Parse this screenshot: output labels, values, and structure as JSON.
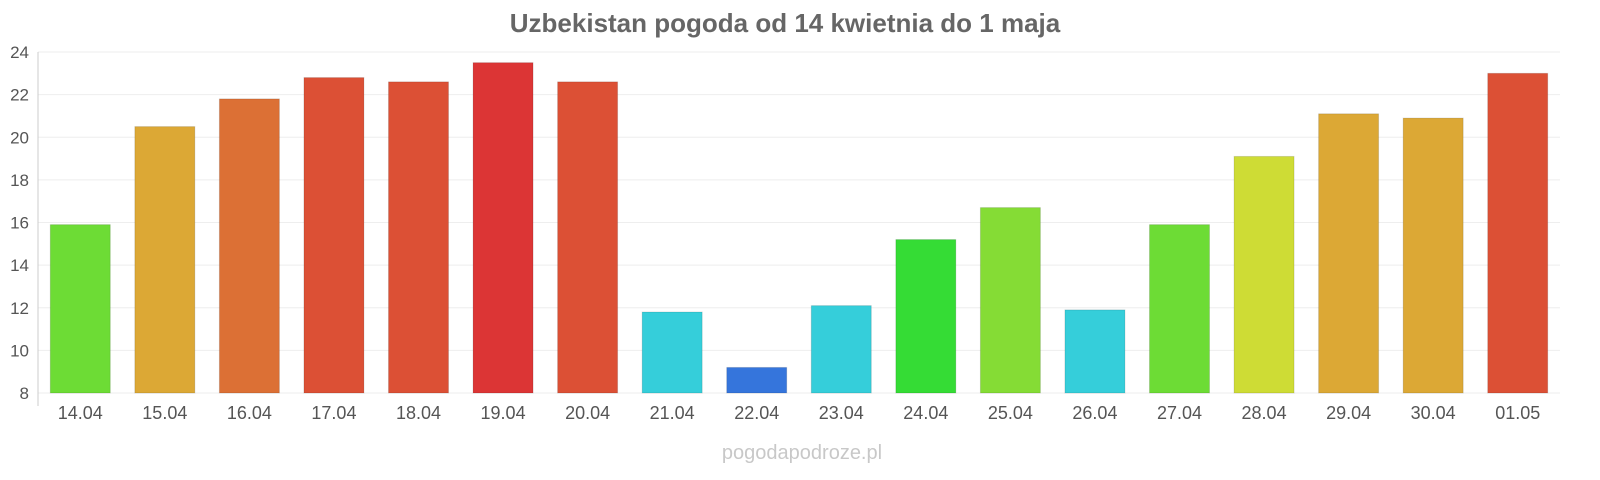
{
  "chart_data": {
    "type": "bar",
    "title": "Uzbekistan pogoda od 14 kwietnia do 1 maja",
    "xlabel": "",
    "ylabel": "",
    "ylim": [
      8,
      24
    ],
    "yticks": [
      "8",
      "10",
      "12",
      "14",
      "16",
      "18",
      "20",
      "22",
      "24"
    ],
    "grid": true,
    "categories": [
      "14.04",
      "15.04",
      "16.04",
      "17.04",
      "18.04",
      "19.04",
      "20.04",
      "21.04",
      "22.04",
      "23.04",
      "24.04",
      "25.04",
      "26.04",
      "27.04",
      "28.04",
      "29.04",
      "30.04",
      "01.05"
    ],
    "values": [
      15.9,
      20.5,
      21.8,
      22.8,
      22.6,
      23.5,
      22.6,
      11.8,
      9.2,
      12.1,
      15.2,
      16.7,
      11.9,
      15.9,
      19.1,
      21.1,
      20.9,
      23.0
    ],
    "colors": [
      "#6ddc35",
      "#dca835",
      "#dc7035",
      "#dc5035",
      "#dc5035",
      "#dc3535",
      "#dc5035",
      "#35ceda",
      "#3575dc",
      "#35ceda",
      "#35dc35",
      "#85dc35",
      "#35ceda",
      "#6ddc35",
      "#cedc35",
      "#dca835",
      "#dca835",
      "#dc5035"
    ]
  },
  "footer": {
    "credit": "pogodapodroze.pl"
  }
}
